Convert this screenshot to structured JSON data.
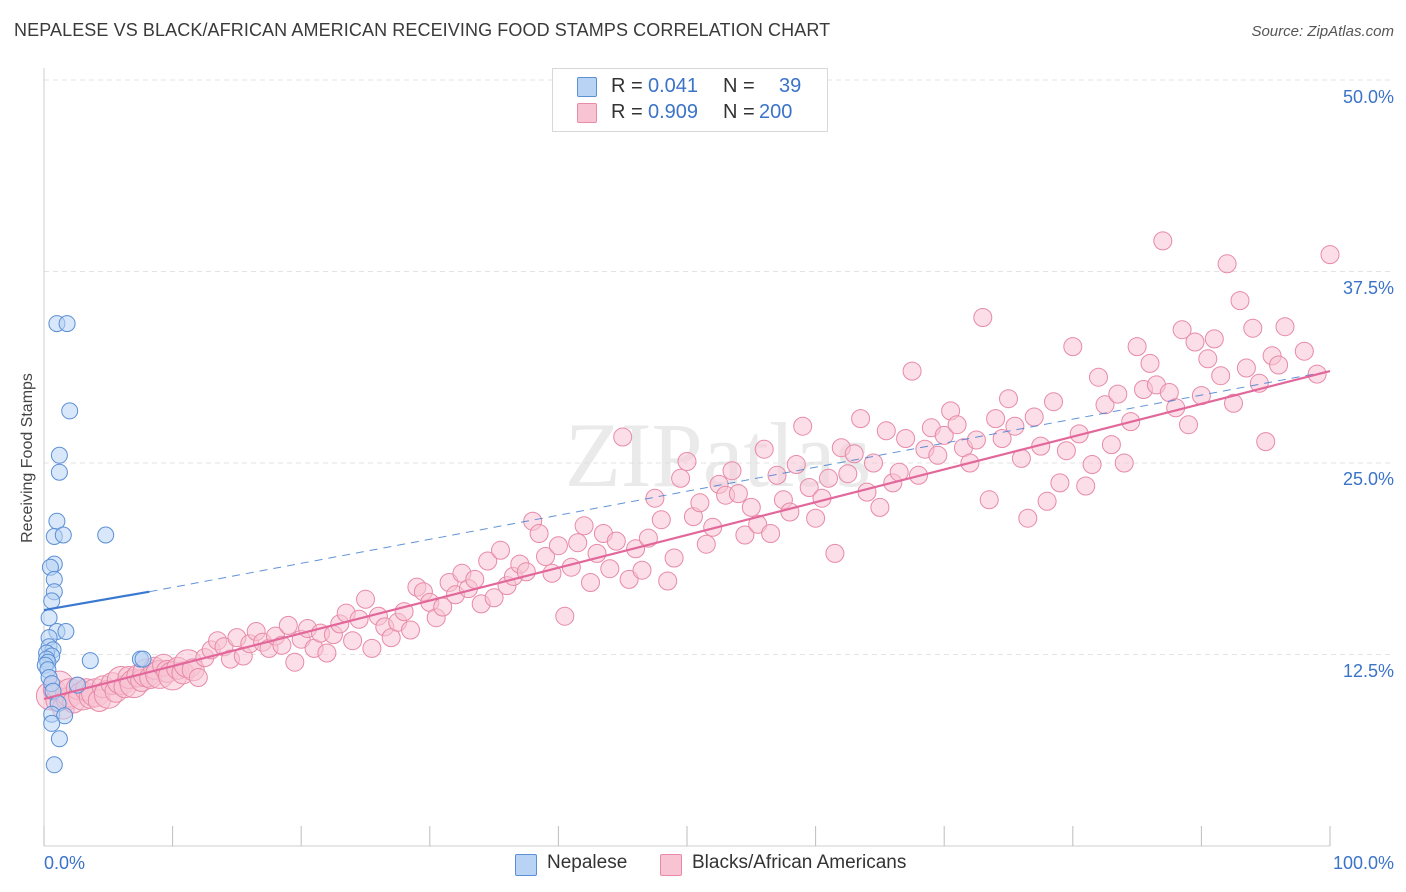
{
  "title": "NEPALESE VS BLACK/AFRICAN AMERICAN RECEIVING FOOD STAMPS CORRELATION CHART",
  "source": "Source: ZipAtlas.com",
  "watermark": "ZIPatlas",
  "legend_top": {
    "r_label": "R =",
    "n_label": "N =",
    "rows": [
      {
        "r": "0.041",
        "n": "39"
      },
      {
        "r": "0.909",
        "n": "200"
      }
    ]
  },
  "colors": {
    "blue_fill": "#b8d3f4",
    "blue_edge": "#5b8fd6",
    "blue_line": "#3b78d0",
    "pink_fill": "#f8c3d3",
    "pink_edge": "#e88aa8",
    "pink_line": "#e2679a",
    "accent_text": "#3b73c9",
    "grid": "#e3e3e3"
  },
  "chart_data": {
    "type": "scatter",
    "title": "NEPALESE VS BLACK/AFRICAN AMERICAN RECEIVING FOOD STAMPS CORRELATION CHART",
    "xlabel": "",
    "ylabel": "Receiving Food Stamps",
    "xlim": [
      0,
      100
    ],
    "ylim": [
      0,
      50
    ],
    "x_tick_labels": [
      "0.0%",
      "100.0%"
    ],
    "y_ticks": [
      12.5,
      25.0,
      37.5,
      50.0
    ],
    "y_tick_labels": [
      "12.5%",
      "25.0%",
      "37.5%",
      "50.0%"
    ],
    "grid": true,
    "legend_placement": "bottom",
    "series": [
      {
        "name": "Nepalese",
        "color": "#b8d3f4",
        "r": 0.041,
        "n": 39,
        "trend": {
          "x": [
            0,
            8.2
          ],
          "y": [
            15.4,
            16.6
          ],
          "dashed_extension": {
            "x": [
              8.2,
              100
            ],
            "y": [
              16.6,
              31.0
            ]
          }
        },
        "points": [
          [
            1.0,
            34.1
          ],
          [
            1.8,
            34.1
          ],
          [
            2.0,
            28.4
          ],
          [
            1.2,
            25.5
          ],
          [
            1.2,
            24.4
          ],
          [
            1.0,
            21.2
          ],
          [
            0.8,
            20.2
          ],
          [
            1.5,
            20.3
          ],
          [
            4.8,
            20.3
          ],
          [
            0.8,
            18.4
          ],
          [
            0.5,
            18.2
          ],
          [
            0.8,
            17.4
          ],
          [
            0.8,
            16.6
          ],
          [
            0.6,
            16.0
          ],
          [
            0.4,
            14.9
          ],
          [
            1.0,
            14.0
          ],
          [
            1.7,
            14.0
          ],
          [
            0.4,
            13.6
          ],
          [
            0.4,
            13.0
          ],
          [
            0.7,
            12.8
          ],
          [
            0.2,
            12.6
          ],
          [
            0.6,
            12.4
          ],
          [
            0.2,
            12.2
          ],
          [
            0.3,
            12.0
          ],
          [
            0.1,
            11.8
          ],
          [
            0.3,
            11.5
          ],
          [
            3.6,
            12.1
          ],
          [
            7.5,
            12.2
          ],
          [
            7.7,
            12.2
          ],
          [
            0.4,
            11.0
          ],
          [
            0.6,
            10.6
          ],
          [
            2.6,
            10.5
          ],
          [
            0.7,
            10.1
          ],
          [
            1.1,
            9.3
          ],
          [
            0.6,
            8.6
          ],
          [
            1.6,
            8.5
          ],
          [
            0.6,
            8.0
          ],
          [
            1.2,
            7.0
          ],
          [
            0.8,
            5.3
          ]
        ]
      },
      {
        "name": "Blacks/African Americans",
        "color": "#f8c3d3",
        "r": 0.909,
        "n": 200,
        "trend": {
          "x": [
            0,
            100
          ],
          "y": [
            9.6,
            31.0
          ]
        },
        "points": [
          [
            0.5,
            9.8
          ],
          [
            0.8,
            10.2
          ],
          [
            1.0,
            9.5
          ],
          [
            1.2,
            10.5
          ],
          [
            1.5,
            9.0
          ],
          [
            1.8,
            9.6
          ],
          [
            2.0,
            10.0
          ],
          [
            2.3,
            9.4
          ],
          [
            2.6,
            10.3
          ],
          [
            3.0,
            9.8
          ],
          [
            3.3,
            10.2
          ],
          [
            3.6,
            9.7
          ],
          [
            4.0,
            10.0
          ],
          [
            4.3,
            9.5
          ],
          [
            4.6,
            10.4
          ],
          [
            5.0,
            9.9
          ],
          [
            5.3,
            10.6
          ],
          [
            5.6,
            10.1
          ],
          [
            6.0,
            10.8
          ],
          [
            6.3,
            10.4
          ],
          [
            6.6,
            11.0
          ],
          [
            7.0,
            10.6
          ],
          [
            7.3,
            11.1
          ],
          [
            7.6,
            10.8
          ],
          [
            8.0,
            11.3
          ],
          [
            8.3,
            11.0
          ],
          [
            8.6,
            11.6
          ],
          [
            9.0,
            11.2
          ],
          [
            9.3,
            11.8
          ],
          [
            9.6,
            11.4
          ],
          [
            10.0,
            11.1
          ],
          [
            10.4,
            11.6
          ],
          [
            10.8,
            11.3
          ],
          [
            11.2,
            11.9
          ],
          [
            11.6,
            11.5
          ],
          [
            12.0,
            11.0
          ],
          [
            12.5,
            12.3
          ],
          [
            13.0,
            12.8
          ],
          [
            13.5,
            13.4
          ],
          [
            14.0,
            13.0
          ],
          [
            14.5,
            12.2
          ],
          [
            15.0,
            13.6
          ],
          [
            15.5,
            12.4
          ],
          [
            16.0,
            13.2
          ],
          [
            16.5,
            14.0
          ],
          [
            17.0,
            13.3
          ],
          [
            17.5,
            12.9
          ],
          [
            18.0,
            13.7
          ],
          [
            18.5,
            13.1
          ],
          [
            19.0,
            14.4
          ],
          [
            19.5,
            12.0
          ],
          [
            20.0,
            13.5
          ],
          [
            20.5,
            14.2
          ],
          [
            21.0,
            12.9
          ],
          [
            21.5,
            13.9
          ],
          [
            22.0,
            12.6
          ],
          [
            22.5,
            13.8
          ],
          [
            23.0,
            14.5
          ],
          [
            23.5,
            15.2
          ],
          [
            24.0,
            13.4
          ],
          [
            24.5,
            14.8
          ],
          [
            25.0,
            16.1
          ],
          [
            25.5,
            12.9
          ],
          [
            26.0,
            15.0
          ],
          [
            26.5,
            14.3
          ],
          [
            27.0,
            13.6
          ],
          [
            27.5,
            14.6
          ],
          [
            28.0,
            15.3
          ],
          [
            28.5,
            14.1
          ],
          [
            29.0,
            16.9
          ],
          [
            29.5,
            16.6
          ],
          [
            30.0,
            15.9
          ],
          [
            30.5,
            14.9
          ],
          [
            31.0,
            15.6
          ],
          [
            31.5,
            17.2
          ],
          [
            32.0,
            16.4
          ],
          [
            32.5,
            17.8
          ],
          [
            33.0,
            16.8
          ],
          [
            33.5,
            17.4
          ],
          [
            34.0,
            15.8
          ],
          [
            34.5,
            18.6
          ],
          [
            35.0,
            16.2
          ],
          [
            35.5,
            19.3
          ],
          [
            36.0,
            17.0
          ],
          [
            36.5,
            17.6
          ],
          [
            37.0,
            18.4
          ],
          [
            37.5,
            17.9
          ],
          [
            38.0,
            21.2
          ],
          [
            38.5,
            20.4
          ],
          [
            39.0,
            18.9
          ],
          [
            39.5,
            17.8
          ],
          [
            40.0,
            19.6
          ],
          [
            40.5,
            15.0
          ],
          [
            41.0,
            18.2
          ],
          [
            41.5,
            19.8
          ],
          [
            42.0,
            20.9
          ],
          [
            42.5,
            17.2
          ],
          [
            43.0,
            19.1
          ],
          [
            43.5,
            20.4
          ],
          [
            44.0,
            18.1
          ],
          [
            44.5,
            19.9
          ],
          [
            45.0,
            26.7
          ],
          [
            45.5,
            17.4
          ],
          [
            46.0,
            19.4
          ],
          [
            46.5,
            18.0
          ],
          [
            47.0,
            20.1
          ],
          [
            47.5,
            22.7
          ],
          [
            48.0,
            21.3
          ],
          [
            48.5,
            17.3
          ],
          [
            49.0,
            18.8
          ],
          [
            49.5,
            24.0
          ],
          [
            50.0,
            25.1
          ],
          [
            50.5,
            21.5
          ],
          [
            51.0,
            22.4
          ],
          [
            51.5,
            19.7
          ],
          [
            52.0,
            20.8
          ],
          [
            52.5,
            23.6
          ],
          [
            53.0,
            22.9
          ],
          [
            53.5,
            24.5
          ],
          [
            54.0,
            23.0
          ],
          [
            54.5,
            20.3
          ],
          [
            55.0,
            22.1
          ],
          [
            55.5,
            21.0
          ],
          [
            56.0,
            25.9
          ],
          [
            56.5,
            20.4
          ],
          [
            57.0,
            24.2
          ],
          [
            57.5,
            22.6
          ],
          [
            58.0,
            21.8
          ],
          [
            58.5,
            24.9
          ],
          [
            59.0,
            27.4
          ],
          [
            59.5,
            23.4
          ],
          [
            60.0,
            21.4
          ],
          [
            60.5,
            22.7
          ],
          [
            61.0,
            24.0
          ],
          [
            61.5,
            19.1
          ],
          [
            62.0,
            26.0
          ],
          [
            62.5,
            24.3
          ],
          [
            63.0,
            25.6
          ],
          [
            63.5,
            27.9
          ],
          [
            64.0,
            23.1
          ],
          [
            64.5,
            25.0
          ],
          [
            65.0,
            22.1
          ],
          [
            65.5,
            27.1
          ],
          [
            66.0,
            23.7
          ],
          [
            66.5,
            24.4
          ],
          [
            67.0,
            26.6
          ],
          [
            67.5,
            31.0
          ],
          [
            68.0,
            24.2
          ],
          [
            68.5,
            25.9
          ],
          [
            69.0,
            27.3
          ],
          [
            69.5,
            25.5
          ],
          [
            70.0,
            26.8
          ],
          [
            70.5,
            28.4
          ],
          [
            71.0,
            27.5
          ],
          [
            71.5,
            26.0
          ],
          [
            72.0,
            25.0
          ],
          [
            72.5,
            26.5
          ],
          [
            73.0,
            34.5
          ],
          [
            73.5,
            22.6
          ],
          [
            74.0,
            27.9
          ],
          [
            74.5,
            26.6
          ],
          [
            75.0,
            29.2
          ],
          [
            75.5,
            27.4
          ],
          [
            76.0,
            25.3
          ],
          [
            76.5,
            21.4
          ],
          [
            77.0,
            28.0
          ],
          [
            77.5,
            26.1
          ],
          [
            78.0,
            22.5
          ],
          [
            78.5,
            29.0
          ],
          [
            79.0,
            23.7
          ],
          [
            79.5,
            25.8
          ],
          [
            80.0,
            32.6
          ],
          [
            80.5,
            26.9
          ],
          [
            81.0,
            23.5
          ],
          [
            81.5,
            24.9
          ],
          [
            82.0,
            30.6
          ],
          [
            82.5,
            28.8
          ],
          [
            83.0,
            26.2
          ],
          [
            83.5,
            29.5
          ],
          [
            84.0,
            25.0
          ],
          [
            84.5,
            27.7
          ],
          [
            85.0,
            32.6
          ],
          [
            85.5,
            29.8
          ],
          [
            86.0,
            31.5
          ],
          [
            86.5,
            30.1
          ],
          [
            87.0,
            39.5
          ],
          [
            87.5,
            29.6
          ],
          [
            88.0,
            28.6
          ],
          [
            88.5,
            33.7
          ],
          [
            89.0,
            27.5
          ],
          [
            89.5,
            32.9
          ],
          [
            90.0,
            29.4
          ],
          [
            90.5,
            31.8
          ],
          [
            91.0,
            33.1
          ],
          [
            91.5,
            30.7
          ],
          [
            92.0,
            38.0
          ],
          [
            92.5,
            28.9
          ],
          [
            93.0,
            35.6
          ],
          [
            93.5,
            31.2
          ],
          [
            94.0,
            33.8
          ],
          [
            94.5,
            30.2
          ],
          [
            95.0,
            26.4
          ],
          [
            95.5,
            32.0
          ],
          [
            96.0,
            31.4
          ],
          [
            96.5,
            33.9
          ],
          [
            98.0,
            32.3
          ],
          [
            99.0,
            30.8
          ],
          [
            100.0,
            38.6
          ]
        ]
      }
    ]
  },
  "x_axis": {
    "left_label": "0.0%",
    "right_label": "100.0%"
  },
  "legend_bottom": [
    "Nepalese",
    "Blacks/African Americans"
  ]
}
